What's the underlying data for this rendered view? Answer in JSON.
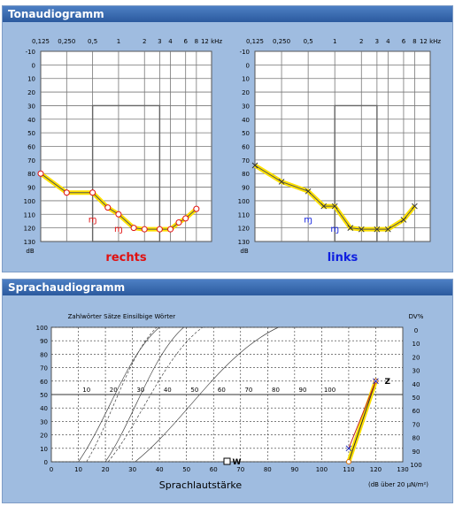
{
  "tone_panel": {
    "title": "Tonaudiogramm"
  },
  "speech_panel": {
    "title": "Sprachaudiogramm"
  },
  "tone_axes": {
    "freq_labels": [
      "0,125",
      "0,250",
      "0,5",
      "1",
      "2",
      "3",
      "4",
      "6",
      "8",
      "12 kHz"
    ],
    "freq_pos": [
      0.125,
      0.25,
      0.5,
      1,
      2,
      3,
      4,
      6,
      8,
      12
    ],
    "db_ticks": [
      -10,
      0,
      10,
      20,
      30,
      40,
      50,
      60,
      70,
      80,
      90,
      100,
      110,
      120,
      130
    ],
    "db_unit": "dB"
  },
  "audiogram_right": {
    "label": "rechts",
    "color": "#e01010",
    "ac_points": [
      [
        0.125,
        80
      ],
      [
        0.25,
        94
      ],
      [
        0.5,
        94
      ],
      [
        0.75,
        105
      ],
      [
        1,
        110
      ],
      [
        1.5,
        120
      ],
      [
        2,
        121
      ],
      [
        3,
        121
      ],
      [
        4,
        121
      ],
      [
        5,
        116
      ],
      [
        6,
        113
      ],
      [
        8,
        106
      ]
    ],
    "bc_points": [
      [
        0.5,
        114
      ],
      [
        1,
        121
      ]
    ],
    "box": {
      "f_from": 0.5,
      "f_to": 3,
      "db_from": 30,
      "db_to": 130
    }
  },
  "audiogram_left": {
    "label": "links",
    "color": "#1020e0",
    "ac_points": [
      [
        0.125,
        74
      ],
      [
        0.25,
        86
      ],
      [
        0.5,
        93
      ],
      [
        0.75,
        104
      ],
      [
        1,
        104
      ],
      [
        1.5,
        120
      ],
      [
        2,
        121
      ],
      [
        3,
        121
      ],
      [
        4,
        121
      ],
      [
        6,
        114
      ],
      [
        8,
        104
      ]
    ],
    "bc_points": [
      [
        0.5,
        114
      ],
      [
        1,
        121
      ]
    ],
    "box": {
      "f_from": 1,
      "f_to": 3,
      "db_from": 30,
      "db_to": 130
    }
  },
  "speech_axes": {
    "left_ticks": [
      0,
      10,
      20,
      30,
      40,
      50,
      60,
      70,
      80,
      90,
      100
    ],
    "right_label": "DV%",
    "right_ticks": [
      0,
      10,
      20,
      30,
      40,
      50,
      60,
      70,
      80,
      90,
      100
    ],
    "x_ticks": [
      0,
      10,
      20,
      30,
      40,
      50,
      60,
      70,
      80,
      90,
      100,
      110,
      120,
      130
    ],
    "inner_ticks": [
      10,
      20,
      30,
      40,
      50,
      60,
      70,
      80,
      90,
      100
    ],
    "xlabel": "Sprachlautstärke",
    "unit_note": "(dB über 20 μN/m²)",
    "curve_legend": "Zahlwörter  Sätze  Einsilbige Wörter"
  },
  "speech_results": {
    "z_label": "Z",
    "w_label": "W",
    "z_points": [
      [
        110,
        0
      ],
      [
        120,
        60
      ]
    ],
    "x_points": [
      [
        110,
        10
      ],
      [
        120,
        60
      ]
    ],
    "w_point": [
      65,
      0
    ]
  },
  "chart_data": [
    {
      "type": "line",
      "title": "rechts",
      "xlabel": "kHz",
      "ylabel": "dB",
      "ylim": [
        -10,
        130
      ],
      "x": [
        0.125,
        0.25,
        0.5,
        0.75,
        1,
        1.5,
        2,
        3,
        4,
        5,
        6,
        8
      ],
      "series": [
        {
          "values": [
            80,
            94,
            94,
            105,
            110,
            120,
            121,
            121,
            121,
            116,
            113,
            106
          ]
        }
      ]
    },
    {
      "type": "line",
      "title": "links",
      "xlabel": "kHz",
      "ylabel": "dB",
      "ylim": [
        -10,
        130
      ],
      "x": [
        0.125,
        0.25,
        0.5,
        0.75,
        1,
        1.5,
        2,
        3,
        4,
        6,
        8
      ],
      "series": [
        {
          "values": [
            74,
            86,
            93,
            104,
            104,
            120,
            121,
            121,
            121,
            114,
            104
          ]
        }
      ]
    },
    {
      "type": "line",
      "title": "Sprachaudiogramm",
      "xlabel": "Sprachlautstärke",
      "ylabel": "DV%",
      "xlim": [
        0,
        130
      ],
      "ylim": [
        0,
        100
      ],
      "x": [
        110,
        120
      ],
      "series": [
        {
          "name": "Z",
          "values": [
            0,
            60
          ]
        }
      ]
    }
  ]
}
